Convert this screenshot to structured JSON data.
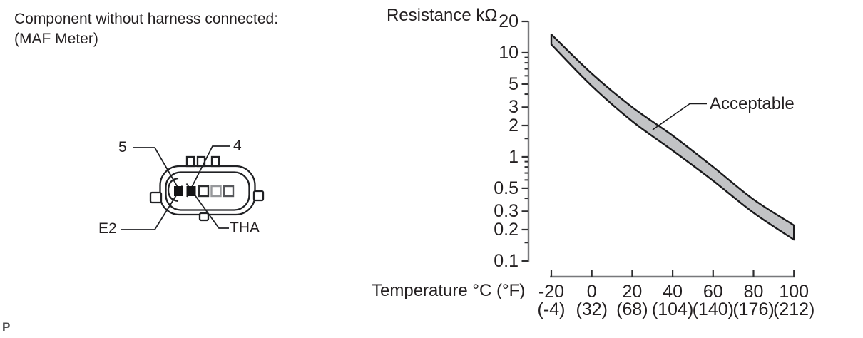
{
  "page": {
    "background": "#ffffff",
    "corner_text": "P"
  },
  "left_panel": {
    "title_line1": "Component without harness connected:",
    "title_line2": "(MAF Meter)",
    "connector": {
      "labels": {
        "top_left": "5",
        "top_right": "4",
        "bottom_left": "E2",
        "bottom_right": "THA"
      },
      "pins": [
        {
          "name": "terminal-5-E2",
          "filled": true
        },
        {
          "name": "terminal-4-THA",
          "filled": true
        },
        {
          "name": "terminal-3",
          "filled": false
        },
        {
          "name": "terminal-2",
          "filled": false
        },
        {
          "name": "terminal-1",
          "filled": false
        }
      ]
    }
  },
  "chart": {
    "y_axis_title": "Resistance kΩ",
    "x_axis_title": "Temperature °C (°F)",
    "callout_label": "Acceptable"
  },
  "chart_data": {
    "type": "area",
    "title": "MAF meter intake air temperature sensor resistance vs temperature",
    "ylabel": "Resistance kΩ",
    "xlabel": "Temperature °C (°F)",
    "y_scale": "log",
    "ylim": [
      0.1,
      20
    ],
    "xlim": [
      -20,
      100
    ],
    "grid": false,
    "x": [
      -20,
      0,
      20,
      40,
      60,
      80,
      100
    ],
    "x_tick_labels_celsius": [
      "-20",
      "0",
      "20",
      "40",
      "60",
      "80",
      "100"
    ],
    "x_tick_labels_fahrenheit": [
      "(-4)",
      "(32)",
      "(68)",
      "(104)",
      "(140)",
      "(176)",
      "(212)"
    ],
    "y_major_ticks": [
      20,
      10,
      5,
      3,
      2,
      1,
      0.5,
      0.3,
      0.2,
      0.1
    ],
    "y_major_tick_labels": [
      "20",
      "10",
      "5",
      "3",
      "2",
      "1",
      "0.5",
      "0.3",
      "0.2",
      "0.1"
    ],
    "y_minor_ticks": [
      9,
      8,
      7,
      6,
      4,
      1.5,
      0.9,
      0.8,
      0.7,
      0.6,
      0.4,
      0.15
    ],
    "series": [
      {
        "name": "acceptable-band-upper",
        "values": [
          15,
          6.3,
          3.0,
          1.6,
          0.8,
          0.39,
          0.22
        ]
      },
      {
        "name": "acceptable-band-lower",
        "values": [
          12,
          4.8,
          2.2,
          1.15,
          0.59,
          0.29,
          0.16
        ]
      }
    ],
    "band_label": "Acceptable",
    "legend_position": "callout-right",
    "band_fill": "#c2c3c5",
    "line_color": "#1a1a1c",
    "axis_color": "#77787b",
    "tick_color": "#2f2f31"
  }
}
